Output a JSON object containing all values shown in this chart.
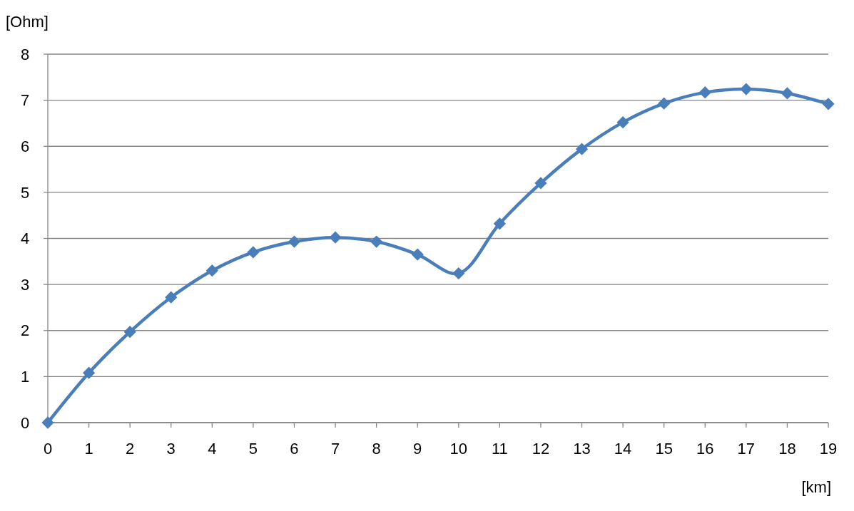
{
  "chart_data": {
    "type": "line",
    "xlabel": "[km]",
    "ylabel": "[Ohm]",
    "x": [
      0,
      1,
      2,
      3,
      4,
      5,
      6,
      7,
      8,
      9,
      10,
      11,
      12,
      13,
      14,
      15,
      16,
      17,
      18,
      19
    ],
    "series": [
      {
        "color": "#4a7ebb",
        "values": [
          0,
          1.08,
          1.97,
          2.72,
          3.3,
          3.7,
          3.93,
          4.02,
          3.93,
          3.65,
          3.24,
          4.32,
          5.2,
          5.94,
          6.52,
          6.93,
          7.17,
          7.24,
          7.15,
          6.92
        ]
      }
    ],
    "xlim": [
      0,
      19
    ],
    "xticks": [
      0,
      1,
      2,
      3,
      4,
      5,
      6,
      7,
      8,
      9,
      10,
      11,
      12,
      13,
      14,
      15,
      16,
      17,
      18,
      19
    ],
    "ylim": [
      0,
      8
    ],
    "yticks": [
      0,
      1,
      2,
      3,
      4,
      5,
      6,
      7,
      8
    ],
    "grid": "y",
    "marker": "diamond",
    "line_style": "solid"
  }
}
